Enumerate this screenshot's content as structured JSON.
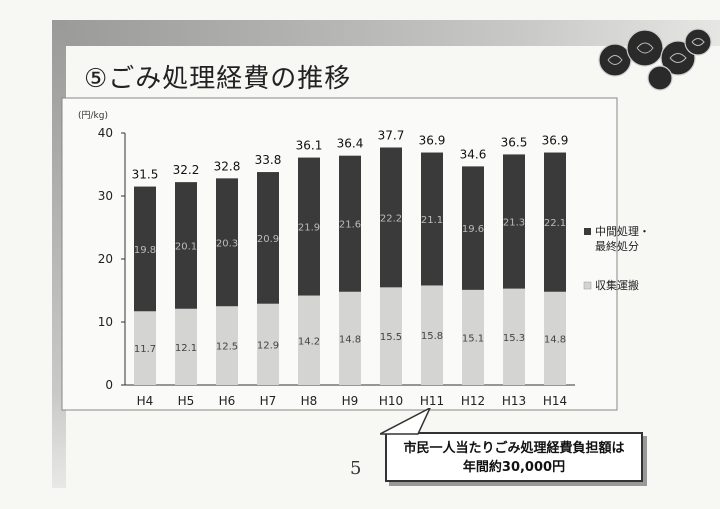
{
  "page": {
    "title": "⑤ごみ処理経費の推移",
    "page_number": "5",
    "callout_line1": "市民一人当たりごみ処理経費負担額は",
    "callout_line2": "年間約30,000円"
  },
  "chart_data": {
    "type": "bar",
    "stacked": true,
    "unit": "(円/kg)",
    "categories": [
      "H4",
      "H5",
      "H6",
      "H7",
      "H8",
      "H9",
      "H10",
      "H11",
      "H12",
      "H13",
      "H14"
    ],
    "series": [
      {
        "name": "収集運搬",
        "values": [
          11.7,
          12.1,
          12.5,
          12.9,
          14.2,
          14.8,
          15.5,
          15.8,
          15.1,
          15.3,
          14.8
        ],
        "color": "#d4d4d2"
      },
      {
        "name": "中間処理・最終処分",
        "values": [
          19.8,
          20.1,
          20.3,
          20.9,
          21.9,
          21.6,
          22.2,
          21.1,
          19.6,
          21.3,
          22.1
        ],
        "color": "#3a3a3a"
      }
    ],
    "totals": [
      31.5,
      32.2,
      32.8,
      33.8,
      36.1,
      36.4,
      37.7,
      36.9,
      34.6,
      36.5,
      36.9
    ],
    "yticks": [
      0,
      10,
      20,
      30,
      40
    ],
    "ylim": [
      0,
      40
    ],
    "legend_position": "right"
  }
}
